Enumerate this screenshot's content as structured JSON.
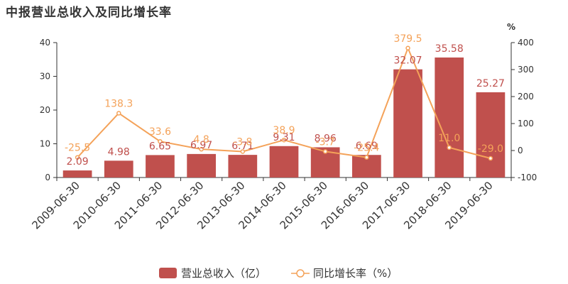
{
  "title": "中报营业总收入及同比增长率",
  "chart_data": {
    "type": "bar",
    "categories": [
      "2009-06-30",
      "2010-06-30",
      "2011-06-30",
      "2012-06-30",
      "2013-06-30",
      "2014-06-30",
      "2015-06-30",
      "2016-06-30",
      "2017-06-30",
      "2018-06-30",
      "2019-06-30"
    ],
    "series": [
      {
        "name": "营业总收入（亿）",
        "type": "bar",
        "axis": "left",
        "color": "#c0504d",
        "values": [
          2.09,
          4.98,
          6.65,
          6.97,
          6.71,
          9.31,
          8.96,
          6.69,
          32.07,
          35.58,
          25.27
        ],
        "labels": [
          "2.09",
          "4.98",
          "6.65",
          "6.97",
          "6.71",
          "9.31",
          "8.96",
          "6.69",
          "32.07",
          "35.58",
          "25.27"
        ]
      },
      {
        "name": "同比增长率（%）",
        "type": "line",
        "axis": "right",
        "color": "#f4a259",
        "values": [
          -25.5,
          138.3,
          33.6,
          4.8,
          -3.8,
          38.9,
          -3.7,
          -25.4,
          379.5,
          11.0,
          -29.0
        ],
        "labels": [
          "-25.5",
          "138.3",
          "33.6",
          "4.8",
          "-3.8",
          "38.9",
          "-3.7",
          "-25.4",
          "379.5",
          "11.0",
          "-29.0"
        ]
      }
    ],
    "left_axis": {
      "ylim": [
        0,
        40
      ],
      "ticks": [
        "0",
        "10",
        "20",
        "30",
        "40"
      ]
    },
    "right_axis": {
      "ylim": [
        -100,
        400
      ],
      "ticks": [
        "-100",
        "0",
        "100",
        "200",
        "300",
        "400"
      ],
      "unit": "%"
    },
    "legend_placement": "bottom-center",
    "grid": false
  }
}
